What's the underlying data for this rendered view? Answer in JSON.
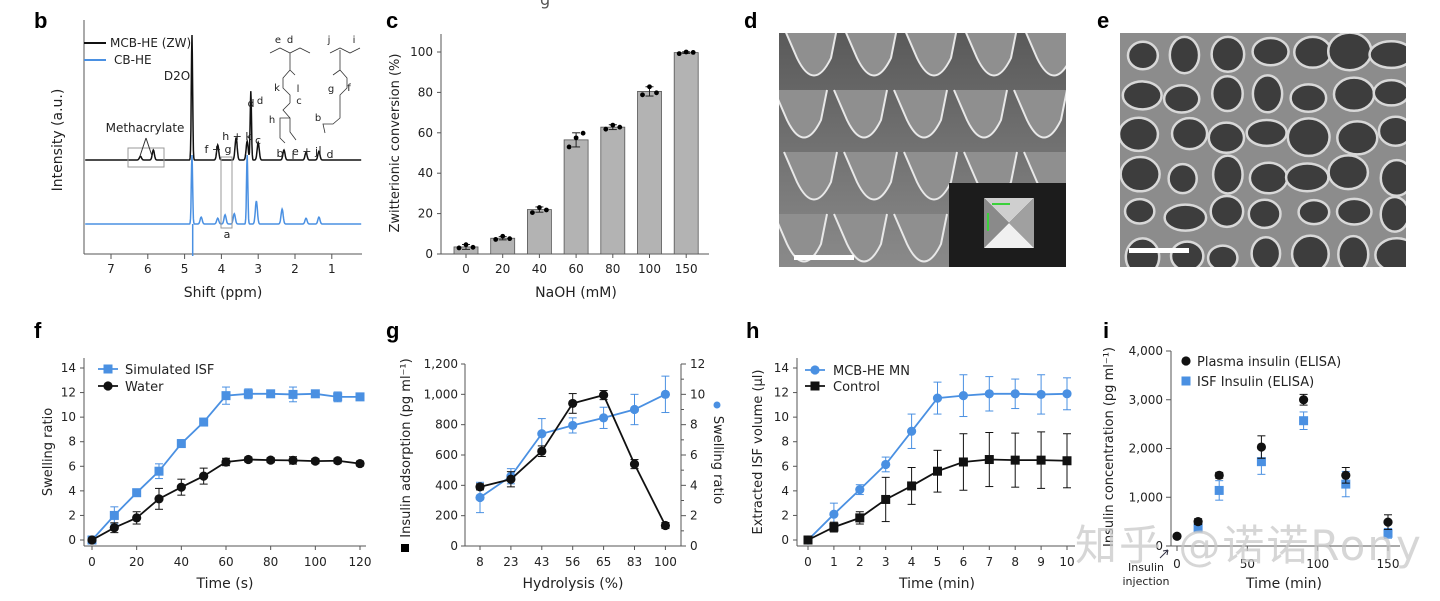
{
  "figure": {
    "title_fragment": "g",
    "watermark": "知乎 @诺诺Rony",
    "colors": {
      "blue": "#4a90e2",
      "black": "#111111",
      "bar_fill": "#b3b3b3",
      "axis": "#555555"
    }
  },
  "panels": {
    "b": {
      "letter": "b"
    },
    "c": {
      "letter": "c"
    },
    "d": {
      "letter": "d",
      "description": "SEM image of microneedle array with inset of single needle"
    },
    "e": {
      "letter": "e",
      "description": "SEM image of porous hydrogel network"
    },
    "f": {
      "letter": "f"
    },
    "g": {
      "letter": "g"
    },
    "h": {
      "letter": "h"
    },
    "i": {
      "letter": "i"
    }
  },
  "chart_data": [
    {
      "id": "b",
      "type": "line",
      "title": "",
      "xlabel": "Shift (ppm)",
      "ylabel": "Intensity (a.u.)",
      "x_ticks": [
        "7",
        "6",
        "5",
        "4",
        "3",
        "2",
        "1"
      ],
      "x_range": [
        7.7,
        0.2
      ],
      "x_reversed": true,
      "legend": [
        "MCB-HE (ZW)",
        "CB-HE"
      ],
      "legend_position": "top-left",
      "annotations": [
        "D2O",
        "Methacrylate",
        "f + g",
        "h + k",
        "d",
        "c",
        "b",
        "i",
        "e + j",
        "l",
        "d",
        "a"
      ],
      "structure_labels": [
        "e",
        "d",
        "j",
        "i",
        "k",
        "l",
        "d",
        "c",
        "h",
        "g",
        "f",
        "b"
      ],
      "series": [
        {
          "name": "MCB-HE (ZW)",
          "peaks": [
            {
              "ppm": 6.2,
              "h": 0.03
            },
            {
              "ppm": 5.85,
              "h": 0.08
            },
            {
              "ppm": 4.8,
              "h": 1.0
            },
            {
              "ppm": 4.1,
              "h": 0.12
            },
            {
              "ppm": 3.6,
              "h": 0.18
            },
            {
              "ppm": 3.3,
              "h": 0.15
            },
            {
              "ppm": 3.2,
              "h": 0.55
            },
            {
              "ppm": 3.0,
              "h": 0.14
            },
            {
              "ppm": 2.3,
              "h": 0.08
            },
            {
              "ppm": 1.7,
              "h": 0.06
            },
            {
              "ppm": 1.35,
              "h": 0.07
            }
          ]
        },
        {
          "name": "CB-HE",
          "peaks": [
            {
              "ppm": 4.8,
              "h": 0.6
            },
            {
              "ppm": 4.55,
              "h": 0.06
            },
            {
              "ppm": 4.1,
              "h": 0.05
            },
            {
              "ppm": 3.9,
              "h": 0.08
            },
            {
              "ppm": 3.65,
              "h": 0.09
            },
            {
              "ppm": 3.3,
              "h": 0.6
            },
            {
              "ppm": 3.05,
              "h": 0.2
            },
            {
              "ppm": 2.35,
              "h": 0.13
            },
            {
              "ppm": 1.7,
              "h": 0.05
            },
            {
              "ppm": 1.35,
              "h": 0.06
            }
          ]
        }
      ]
    },
    {
      "id": "c",
      "type": "bar",
      "title": "",
      "xlabel": "NaOH (mM)",
      "ylabel": "Zwitterionic conversion (%)",
      "categories": [
        "0",
        "20",
        "40",
        "60",
        "80",
        "100",
        "150"
      ],
      "values": [
        3.5,
        7.8,
        22,
        56.5,
        62.8,
        80.5,
        99.7
      ],
      "errors": [
        1.2,
        0.8,
        1.3,
        3.5,
        1.2,
        2.3,
        0.4
      ],
      "replicates": [
        [
          3.0,
          4.6,
          3.3
        ],
        [
          7.2,
          8.8,
          7.6
        ],
        [
          20.5,
          23.0,
          21.8
        ],
        [
          53.0,
          57.5,
          59.8
        ],
        [
          61.8,
          63.8,
          62.8
        ],
        [
          78.8,
          82.8,
          79.8
        ],
        [
          99.2,
          100.0,
          99.8
        ]
      ],
      "ylim": [
        0,
        110
      ],
      "y_ticks": [
        "0",
        "20",
        "40",
        "60",
        "80",
        "100"
      ]
    },
    {
      "id": "f",
      "type": "line",
      "title": "",
      "xlabel": "Time (s)",
      "ylabel": "Swelling ratio",
      "x_ticks": [
        "0",
        "20",
        "40",
        "60",
        "80",
        "100",
        "120"
      ],
      "y_ticks": [
        "0",
        "2",
        "4",
        "6",
        "8",
        "10",
        "12",
        "14"
      ],
      "xlim": [
        0,
        120
      ],
      "ylim": [
        0,
        14
      ],
      "legend_position": "top-left",
      "x": [
        0,
        10,
        20,
        30,
        40,
        50,
        60,
        70,
        80,
        90,
        100,
        110,
        120
      ],
      "series": [
        {
          "name": "Simulated ISF",
          "marker": "square",
          "color": "blue",
          "values": [
            0,
            2.0,
            3.85,
            5.6,
            7.85,
            9.6,
            11.75,
            11.9,
            11.9,
            11.85,
            11.9,
            11.65,
            11.65
          ],
          "errors": [
            0.1,
            0.7,
            0.3,
            0.6,
            0.3,
            0.2,
            0.7,
            0.4,
            0.2,
            0.6,
            0.2,
            0.4,
            0.2
          ]
        },
        {
          "name": "Water",
          "marker": "circle",
          "color": "black",
          "values": [
            0,
            1.0,
            1.8,
            3.35,
            4.3,
            5.2,
            6.35,
            6.55,
            6.5,
            6.48,
            6.42,
            6.45,
            6.22
          ],
          "errors": [
            0.1,
            0.4,
            0.5,
            0.85,
            0.65,
            0.65,
            0.3,
            0.2,
            0.2,
            0.3,
            0.2,
            0.2,
            0.2
          ]
        }
      ]
    },
    {
      "id": "g",
      "type": "line",
      "title": "",
      "xlabel": "Hydrolysis  (%)",
      "ylabel": "Insulin adsorption (pg ml⁻¹)",
      "ylabel_right": "Swelling ratio",
      "categories": [
        "8",
        "23",
        "43",
        "56",
        "65",
        "83",
        "100"
      ],
      "y_ticks": [
        "0",
        "200",
        "400",
        "600",
        "800",
        "1,000",
        "1,200"
      ],
      "y2_ticks": [
        "0",
        "2",
        "4",
        "6",
        "8",
        "10",
        "12"
      ],
      "ylim": [
        0,
        1200
      ],
      "y2lim": [
        0,
        12
      ],
      "series": [
        {
          "name": "Insulin adsorption",
          "axis": "left",
          "marker": "square-circle",
          "color": "black",
          "values": [
            390,
            440,
            625,
            940,
            995,
            540,
            135
          ],
          "errors": [
            20,
            50,
            35,
            65,
            30,
            30,
            20
          ]
        },
        {
          "name": "Swelling ratio",
          "axis": "right",
          "marker": "circle",
          "color": "blue",
          "values": [
            3.2,
            4.6,
            7.4,
            7.95,
            8.45,
            9.0,
            10.0
          ],
          "errors": [
            1.0,
            0.5,
            1.0,
            0.5,
            0.7,
            1.0,
            1.2
          ]
        }
      ]
    },
    {
      "id": "h",
      "type": "line",
      "title": "",
      "xlabel": "Time (min)",
      "ylabel": "Extracted ISF volume (µl)",
      "x_ticks": [
        "0",
        "1",
        "2",
        "3",
        "4",
        "5",
        "6",
        "7",
        "8",
        "9",
        "10"
      ],
      "y_ticks": [
        "0",
        "2",
        "4",
        "6",
        "8",
        "10",
        "12",
        "14"
      ],
      "xlim": [
        0,
        10
      ],
      "ylim": [
        0,
        14
      ],
      "legend_position": "top-left",
      "x": [
        0,
        1,
        2,
        3,
        4,
        5,
        6,
        7,
        8,
        9,
        10
      ],
      "series": [
        {
          "name": "MCB-HE MN",
          "marker": "circle",
          "color": "blue",
          "values": [
            0,
            2.1,
            4.1,
            6.15,
            8.85,
            11.55,
            11.75,
            11.9,
            11.9,
            11.85,
            11.9
          ],
          "errors": [
            0.1,
            0.9,
            0.4,
            0.6,
            1.4,
            1.3,
            1.7,
            1.4,
            1.2,
            1.6,
            1.3
          ]
        },
        {
          "name": "Control",
          "marker": "square",
          "color": "black",
          "values": [
            0,
            1.05,
            1.8,
            3.3,
            4.4,
            5.6,
            6.35,
            6.55,
            6.5,
            6.5,
            6.45
          ],
          "errors": [
            0.1,
            0.4,
            0.5,
            1.8,
            1.5,
            1.7,
            2.3,
            2.2,
            2.2,
            2.3,
            2.2
          ]
        }
      ]
    },
    {
      "id": "i",
      "type": "scatter",
      "title": "",
      "xlabel": "Time (min)",
      "ylabel": "Insulin concentration (pg ml⁻¹)",
      "x_ticks": [
        "0",
        "50",
        "100",
        "150"
      ],
      "y_ticks": [
        "0",
        "1,000",
        "2,000",
        "3,000",
        "4,000"
      ],
      "xlim": [
        -5,
        160
      ],
      "ylim": [
        0,
        4000
      ],
      "legend_position": "top-left",
      "annotation": "Insulin injection",
      "series": [
        {
          "name": "Plasma insulin (ELISA)",
          "marker": "circle",
          "color": "black",
          "x": [
            0,
            15,
            30,
            60,
            90,
            120,
            150
          ],
          "values": [
            200,
            500,
            1450,
            2030,
            3000,
            1450,
            490
          ],
          "errors": [
            40,
            60,
            60,
            230,
            110,
            160,
            150
          ]
        },
        {
          "name": "ISF Insulin (ELISA)",
          "marker": "square",
          "color": "blue",
          "x": [
            15,
            30,
            60,
            90,
            120,
            150
          ],
          "values": [
            370,
            1140,
            1730,
            2570,
            1270,
            260
          ],
          "errors": [
            50,
            200,
            260,
            180,
            260,
            100
          ]
        }
      ]
    }
  ]
}
